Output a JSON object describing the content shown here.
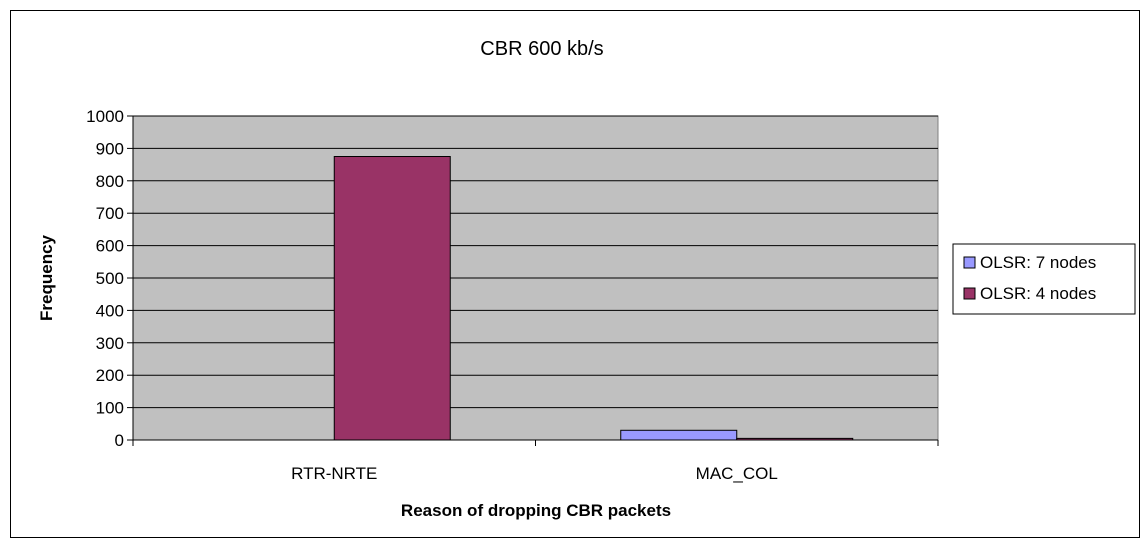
{
  "chart_data": {
    "type": "bar",
    "title": "CBR 600 kb/s",
    "xlabel": "Reason of dropping CBR packets",
    "ylabel": "Frequency",
    "categories": [
      "RTR-NRTE",
      "MAC_COL"
    ],
    "ylim": [
      0,
      1000
    ],
    "yticks": [
      0,
      100,
      200,
      300,
      400,
      500,
      600,
      700,
      800,
      900,
      1000
    ],
    "grid": true,
    "legend_position": "right",
    "plot_background": "#c0c0c0",
    "series": [
      {
        "name": "OLSR: 7 nodes",
        "color": "#9999ff",
        "values": [
          0,
          30
        ]
      },
      {
        "name": "OLSR: 4 nodes",
        "color": "#993366",
        "values": [
          875,
          5
        ]
      }
    ]
  }
}
